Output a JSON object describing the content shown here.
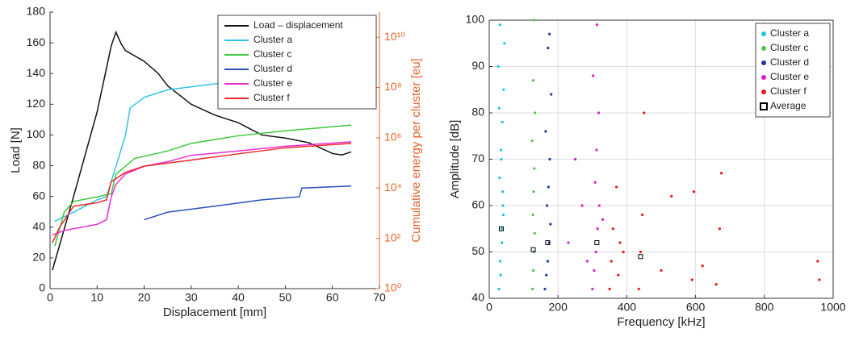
{
  "chart_data": [
    {
      "type": "line",
      "xlabel": "Displacement [mm]",
      "ylabel": "Load [N]",
      "y2label": "Cumulative energy per cluster [eu]",
      "y2color": "#e8632b",
      "xlim": [
        0,
        70
      ],
      "xticks": [
        0,
        10,
        20,
        30,
        40,
        50,
        60,
        70
      ],
      "ylim": [
        0,
        180
      ],
      "yticks": [
        0,
        20,
        40,
        60,
        80,
        100,
        120,
        140,
        160,
        180
      ],
      "y2scale": "log",
      "y2lim": [
        1,
        100000000000
      ],
      "y2ticks": [
        {
          "value": 1,
          "label": "10⁰"
        },
        {
          "value": 100,
          "label": "10²"
        },
        {
          "value": 10000,
          "label": "10⁴"
        },
        {
          "value": 1000000,
          "label": "10⁶"
        },
        {
          "value": 100000000,
          "label": "10⁸"
        },
        {
          "value": 10000000000,
          "label": "10¹⁰"
        }
      ],
      "grid": false,
      "legend": "top-right",
      "series": [
        {
          "name": "Load – displacement",
          "color": "#111111",
          "x": [
            0.5,
            5,
            10,
            13,
            14,
            15,
            16,
            20,
            23,
            25,
            30,
            35,
            40,
            45,
            50,
            55,
            60,
            62,
            64
          ],
          "values": [
            12,
            60,
            115,
            158,
            167,
            160,
            155,
            148,
            140,
            132,
            120,
            113,
            108,
            100,
            98,
            95,
            88,
            87,
            89
          ]
        },
        {
          "name": "Cluster a",
          "color": "#2ec4e6",
          "axis": "y2",
          "x": [
            1,
            5,
            10,
            12,
            14,
            16,
            17,
            20,
            25,
            35,
            45
          ],
          "values": [
            480,
            1100,
            3400,
            4500,
            74000,
            1200000,
            15000000,
            41000000,
            81000000,
            140000000,
            190000000
          ]
        },
        {
          "name": "Cluster c",
          "color": "#3cc83c",
          "axis": "y2",
          "x": [
            1,
            3,
            5,
            10,
            13,
            14,
            18,
            25,
            30,
            40,
            50,
            64
          ],
          "values": [
            50,
            1100,
            2930,
            4500,
            5900,
            36000,
            151000,
            300000,
            600000,
            1200000,
            1900000,
            3200000
          ]
        },
        {
          "name": "Cluster d",
          "color": "#2a4fb8",
          "axis": "y2",
          "x": [
            20,
            25,
            35,
            45,
            53,
            53.5,
            64
          ],
          "values": [
            550,
            1100,
            1900,
            3400,
            4500,
            10000,
            12000
          ]
        },
        {
          "name": "Cluster e",
          "color": "#e62ed2",
          "axis": "y2",
          "x": [
            0.5,
            3,
            10,
            12,
            13,
            14,
            16,
            20,
            25,
            30,
            40,
            50,
            64
          ],
          "values": [
            135,
            205,
            360,
            550,
            4500,
            14000,
            36000,
            74000,
            113000,
            200000,
            300000,
            460000,
            690000
          ]
        },
        {
          "name": "Cluster f",
          "color": "#f02828",
          "axis": "y2",
          "x": [
            0.5,
            2,
            5,
            10,
            12,
            13,
            16,
            20,
            30,
            40,
            50,
            64
          ],
          "values": [
            67,
            270,
            1900,
            2600,
            3400,
            18000,
            42000,
            74000,
            130000,
            230000,
            400000,
            600000
          ]
        }
      ]
    },
    {
      "type": "scatter",
      "xlabel": "Frequency [kHz]",
      "ylabel": "Amplitude [dB]",
      "xlim": [
        0,
        1000
      ],
      "xticks": [
        0,
        200,
        400,
        600,
        800,
        1000
      ],
      "ylim": [
        40,
        100
      ],
      "yticks": [
        40,
        50,
        60,
        70,
        80,
        90,
        100
      ],
      "grid": true,
      "legend": "top-right",
      "series": [
        {
          "name": "Cluster a",
          "color": "#22c0e0",
          "x": [
            28,
            32,
            36,
            40,
            30,
            34,
            38,
            42,
            26,
            44,
            31,
            37,
            33,
            39,
            35,
            29,
            41
          ],
          "values": [
            42,
            48,
            55,
            60,
            66,
            72,
            78,
            85,
            90,
            95,
            99,
            52,
            45,
            63,
            70,
            81,
            58
          ]
        },
        {
          "name": "Cluster c",
          "color": "#4cc84c",
          "x": [
            126,
            128,
            130,
            132,
            127,
            129,
            131,
            125,
            133,
            128,
            130
          ],
          "values": [
            42,
            46,
            50,
            54,
            58,
            63,
            68,
            74,
            80,
            87,
            100
          ]
        },
        {
          "name": "Cluster d",
          "color": "#1a3aa8",
          "x": [
            162,
            166,
            170,
            174,
            178,
            168,
            172,
            176,
            164,
            180,
            171,
            175
          ],
          "values": [
            42,
            45,
            48,
            52,
            56,
            60,
            64,
            70,
            76,
            84,
            94,
            97
          ]
        },
        {
          "name": "Cluster e",
          "color": "#d81ecc",
          "x": [
            300,
            305,
            310,
            315,
            320,
            308,
            312,
            318,
            302,
            313,
            250,
            270,
            230,
            285,
            330
          ],
          "values": [
            42,
            46,
            50,
            55,
            60,
            65,
            72,
            80,
            88,
            99,
            70,
            60,
            52,
            48,
            57
          ]
        },
        {
          "name": "Cluster f",
          "color": "#e81818",
          "x": [
            350,
            355,
            360,
            370,
            375,
            380,
            435,
            440,
            445,
            450,
            500,
            530,
            590,
            595,
            660,
            670,
            675,
            955,
            960,
            390,
            620
          ],
          "values": [
            42,
            48,
            55,
            64,
            45,
            52,
            42,
            50,
            58,
            80,
            46,
            62,
            44,
            63,
            43,
            55,
            67,
            48,
            44,
            50,
            47
          ]
        },
        {
          "name": "Average",
          "color": "#000000",
          "marker": "square",
          "x": [
            35,
            128,
            170,
            313,
            440
          ],
          "values": [
            55,
            50.5,
            52,
            52,
            49
          ]
        }
      ]
    }
  ]
}
